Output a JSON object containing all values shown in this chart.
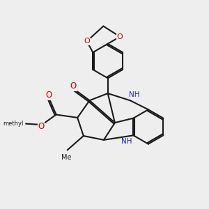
{
  "bg": "#eeeeee",
  "bc": "#1a1a1a",
  "oc": "#cc0000",
  "nc": "#2222bb",
  "lw": 1.5,
  "dbo": 0.08,
  "figsize": [
    3.0,
    3.0
  ],
  "dpi": 100,
  "xlim": [
    0,
    10
  ],
  "ylim": [
    0,
    10
  ]
}
